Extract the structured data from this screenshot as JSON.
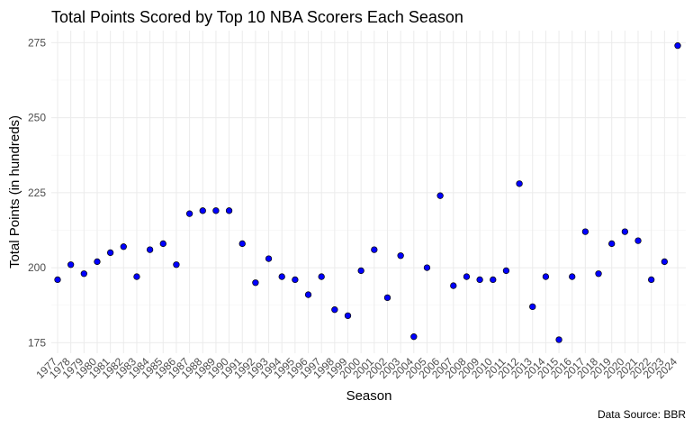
{
  "chart_data": {
    "type": "scatter",
    "title": "Total Points Scored by Top 10 NBA Scorers Each Season",
    "xlabel": "Season",
    "ylabel": "Total Points (in hundreds)",
    "caption": "Data Source: BBR",
    "categories": [
      "1977",
      "1978",
      "1979",
      "1980",
      "1981",
      "1982",
      "1983",
      "1984",
      "1985",
      "1986",
      "1987",
      "1988",
      "1989",
      "1990",
      "1991",
      "1992",
      "1993",
      "1994",
      "1995",
      "1996",
      "1997",
      "1998",
      "1999",
      "2000",
      "2001",
      "2002",
      "2003",
      "2004",
      "2005",
      "2006",
      "2007",
      "2008",
      "2009",
      "2010",
      "2011",
      "2012",
      "2013",
      "2014",
      "2015",
      "2016",
      "2017",
      "2018",
      "2019",
      "2020",
      "2021",
      "2022",
      "2023",
      "2024"
    ],
    "values": [
      196,
      201,
      198,
      202,
      205,
      207,
      197,
      206,
      208,
      201,
      218,
      219,
      219,
      219,
      208,
      195,
      203,
      197,
      196,
      191,
      197,
      186,
      184,
      199,
      206,
      190,
      204,
      177,
      200,
      224,
      194,
      197,
      196,
      196,
      199,
      228,
      187,
      197,
      176,
      197,
      212,
      198,
      208,
      212,
      209,
      196,
      202,
      274
    ],
    "ylim": [
      171.5,
      279
    ],
    "yticks": [
      175,
      200,
      225,
      250,
      275
    ],
    "point_color": "#0000ff",
    "grid": true,
    "legend": "none"
  }
}
